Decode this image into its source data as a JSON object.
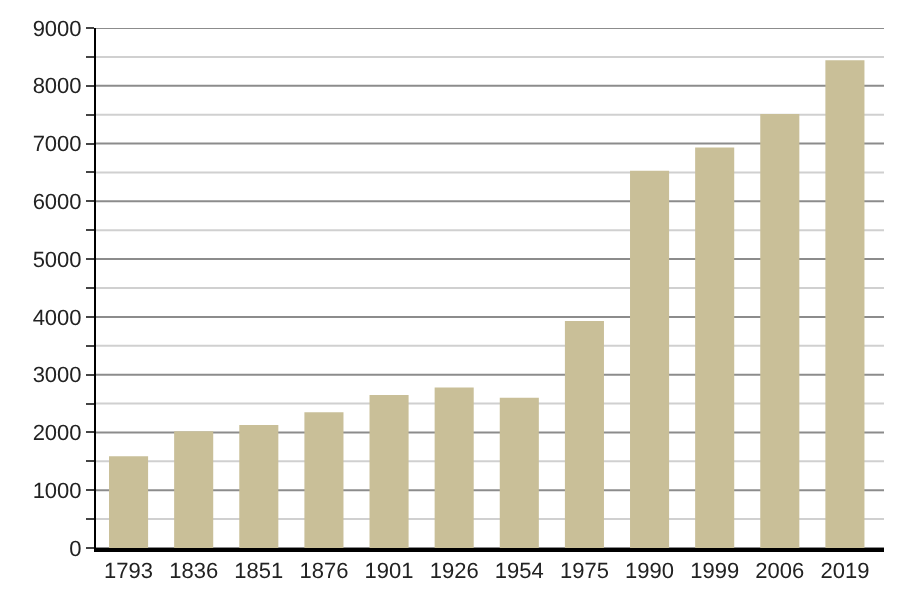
{
  "chart_data": {
    "type": "bar",
    "categories": [
      "1793",
      "1836",
      "1851",
      "1876",
      "1901",
      "1926",
      "1954",
      "1975",
      "1990",
      "1999",
      "2006",
      "2019"
    ],
    "values": [
      1590,
      2020,
      2130,
      2350,
      2650,
      2780,
      2600,
      3930,
      6530,
      6930,
      7510,
      8440
    ],
    "color": "#c9bf98",
    "ylim": [
      0,
      9000
    ],
    "yticks": [
      0,
      {
        "value": 500,
        "label": null
      },
      1000,
      {
        "value": 1500,
        "label": null
      },
      2000,
      {
        "value": 2500,
        "label": null
      },
      3000,
      {
        "value": 3500,
        "label": null
      },
      4000,
      {
        "value": 4500,
        "label": null
      },
      5000,
      {
        "value": 5500,
        "label": null
      },
      6000,
      {
        "value": 6500,
        "label": null
      },
      7000,
      {
        "value": 7500,
        "label": null
      },
      8000,
      {
        "value": 8500,
        "label": null
      },
      9000
    ],
    "grid": true
  }
}
